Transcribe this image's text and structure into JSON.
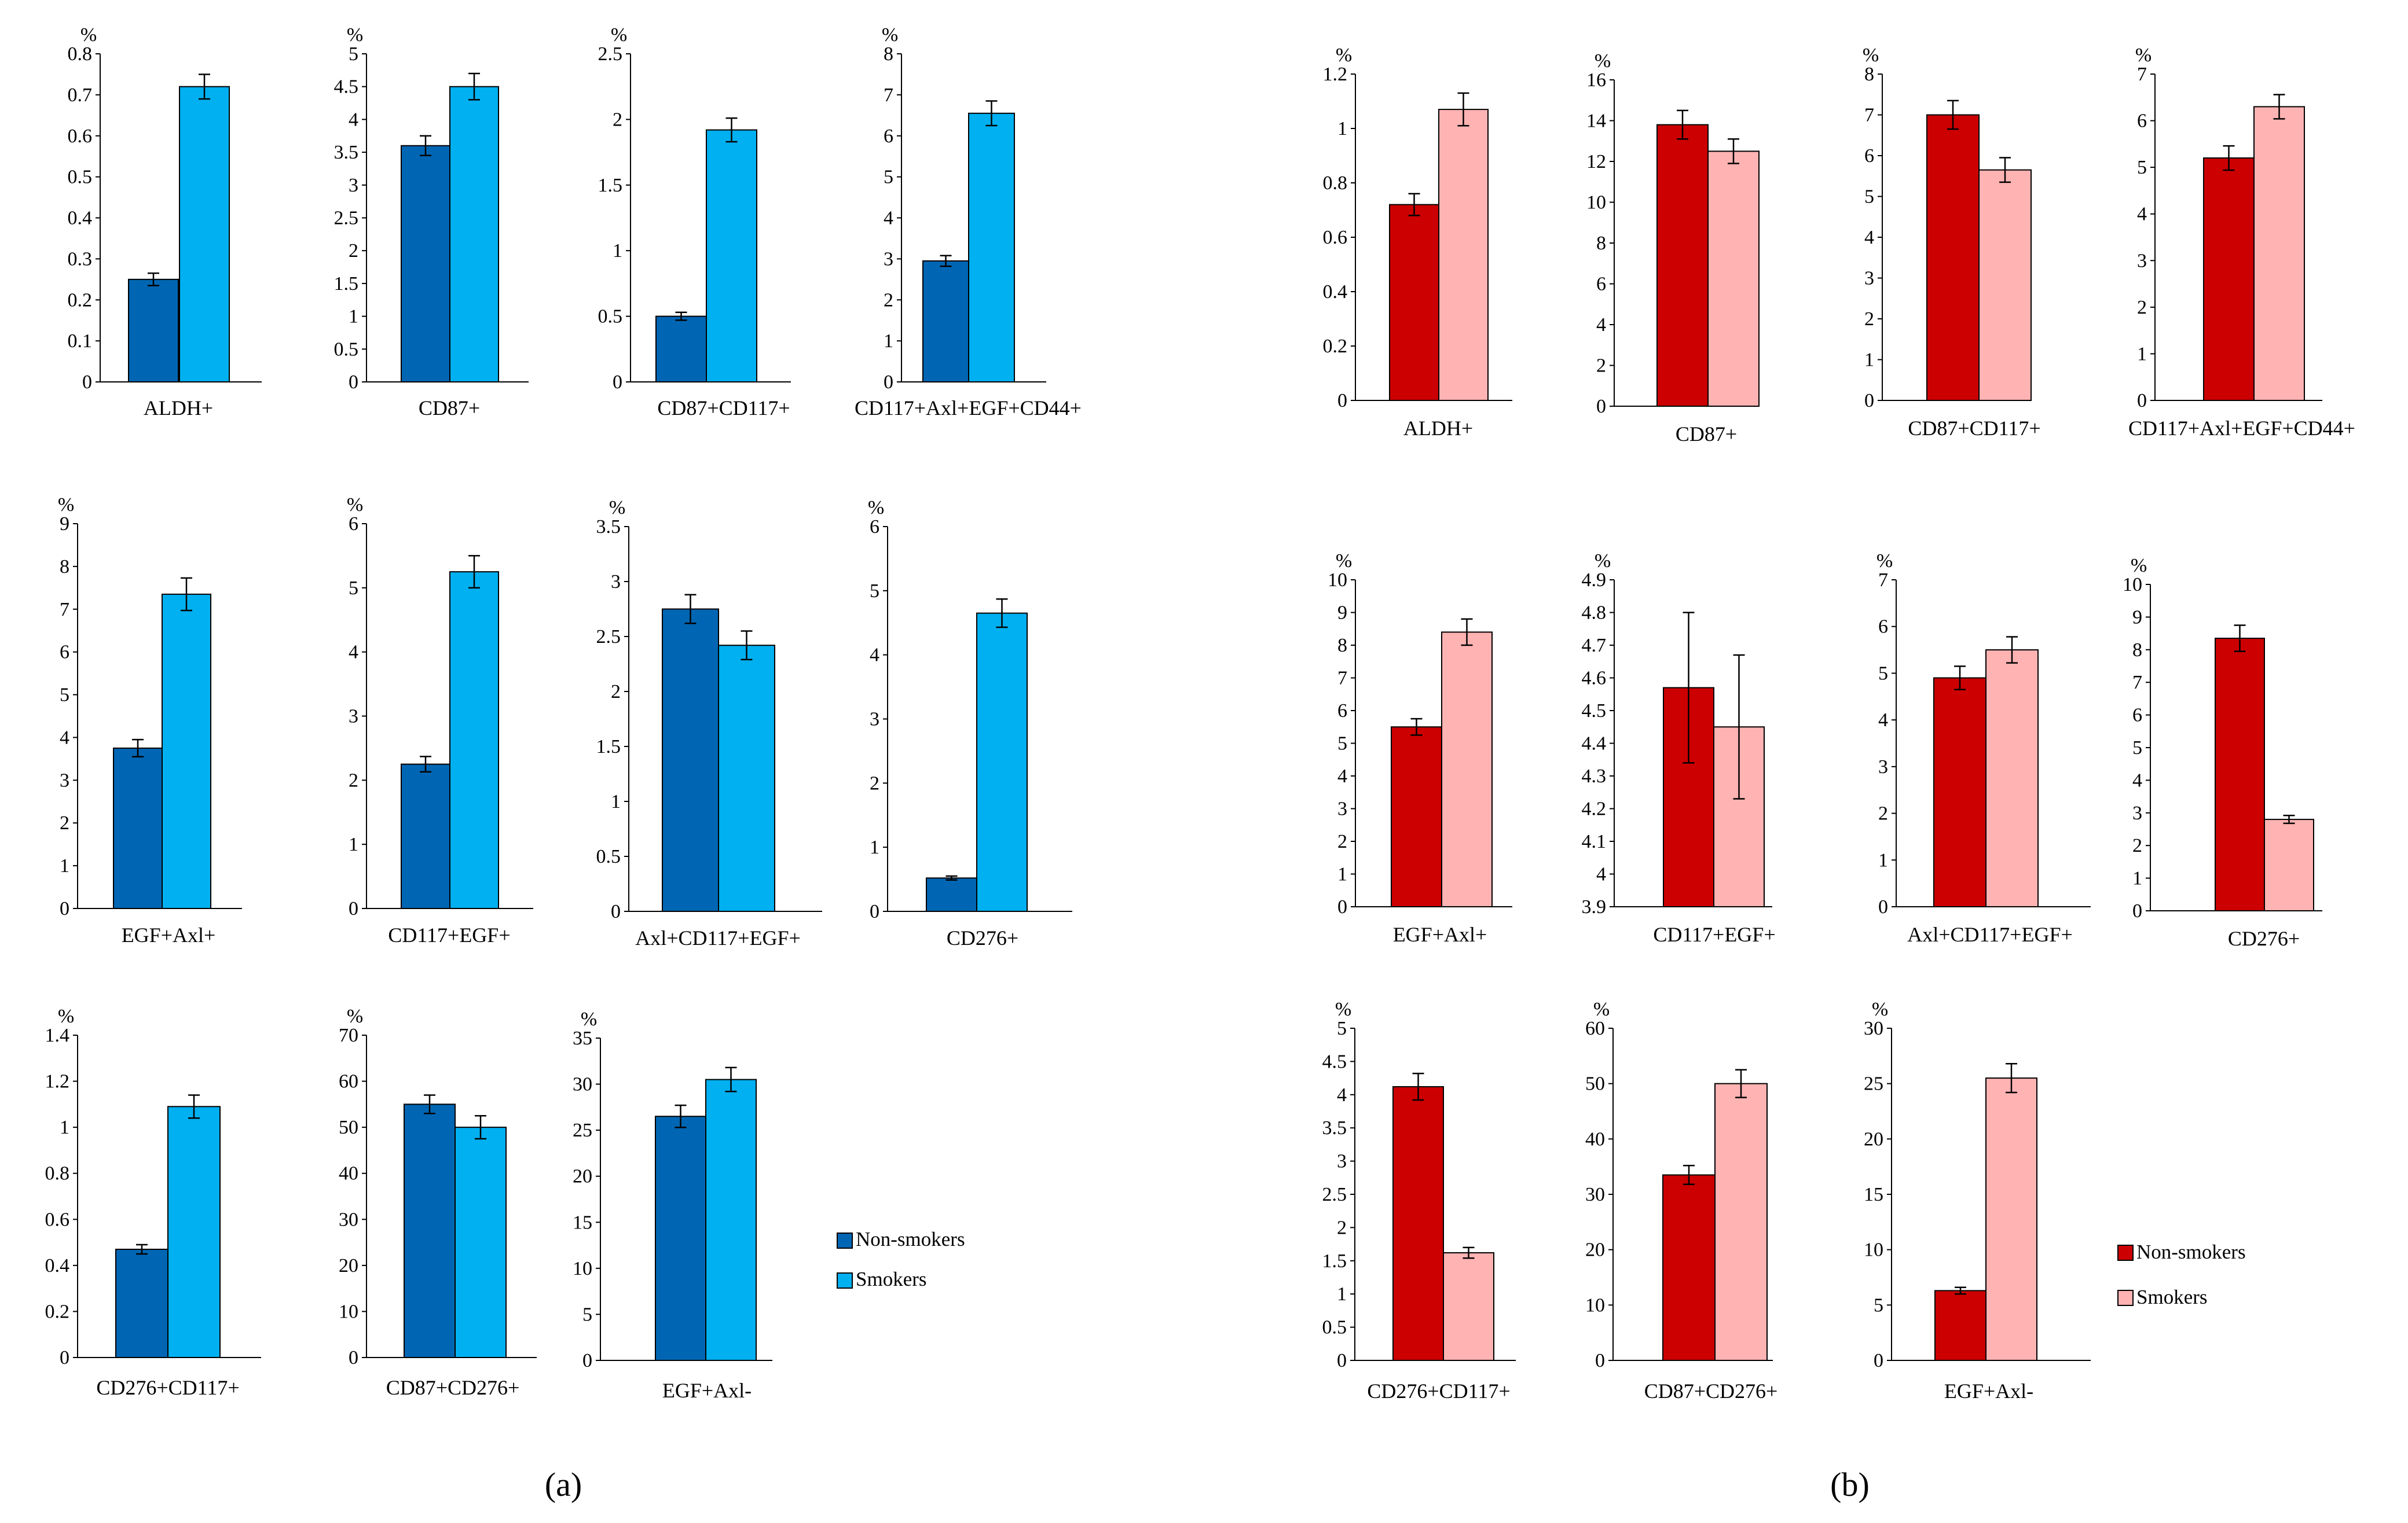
{
  "charts": [
    {
      "panel": "a",
      "unit": "%",
      "category": "ALDH+",
      "yticks": [
        "0",
        "0.1",
        "0.2",
        "0.3",
        "0.4",
        "0.5",
        "0.6",
        "0.7",
        "0.8"
      ],
      "ylim": [
        0,
        0.8
      ],
      "values": [
        0.25,
        0.72
      ],
      "errors": [
        0.015,
        0.03
      ]
    },
    {
      "panel": "a",
      "unit": "%",
      "category": "CD87+",
      "yticks": [
        "0",
        "0.5",
        "1",
        "1.5",
        "2",
        "2.5",
        "3",
        "3.5",
        "4",
        "4.5",
        "5"
      ],
      "ylim": [
        0,
        5
      ],
      "values": [
        3.6,
        4.5
      ],
      "errors": [
        0.15,
        0.2
      ]
    },
    {
      "panel": "a",
      "unit": "%",
      "category": "CD87+CD117+",
      "yticks": [
        "0",
        "0.5",
        "1",
        "1.5",
        "2",
        "2.5"
      ],
      "ylim": [
        0,
        2.5
      ],
      "values": [
        0.5,
        1.92
      ],
      "errors": [
        0.03,
        0.09
      ]
    },
    {
      "panel": "a",
      "unit": "%",
      "category": "CD117+Axl+EGF+CD44+",
      "yticks": [
        "0",
        "1",
        "2",
        "3",
        "4",
        "5",
        "6",
        "7",
        "8"
      ],
      "ylim": [
        0,
        8
      ],
      "values": [
        2.95,
        6.55
      ],
      "errors": [
        0.13,
        0.3
      ]
    },
    {
      "panel": "a",
      "unit": "%",
      "category": "EGF+Axl+",
      "yticks": [
        "0",
        "1",
        "2",
        "3",
        "4",
        "5",
        "6",
        "7",
        "8",
        "9"
      ],
      "ylim": [
        0,
        9
      ],
      "values": [
        3.75,
        7.35
      ],
      "errors": [
        0.2,
        0.38
      ]
    },
    {
      "panel": "a",
      "unit": "%",
      "category": "CD117+EGF+",
      "yticks": [
        "0",
        "1",
        "2",
        "3",
        "4",
        "5",
        "6"
      ],
      "ylim": [
        0,
        6
      ],
      "values": [
        2.25,
        5.25
      ],
      "errors": [
        0.12,
        0.25
      ]
    },
    {
      "panel": "a",
      "unit": "%",
      "category": "Axl+CD117+EGF+",
      "yticks": [
        "0",
        "0.5",
        "1",
        "1.5",
        "2",
        "2.5",
        "3",
        "3.5"
      ],
      "ylim": [
        0,
        3.5
      ],
      "values": [
        2.75,
        2.42
      ],
      "errors": [
        0.13,
        0.13
      ]
    },
    {
      "panel": "a",
      "unit": "%",
      "category": "CD276+",
      "yticks": [
        "0",
        "1",
        "2",
        "3",
        "4",
        "5",
        "6"
      ],
      "ylim": [
        0,
        6
      ],
      "values": [
        0.52,
        4.65
      ],
      "errors": [
        0.03,
        0.22
      ]
    },
    {
      "panel": "a",
      "unit": "%",
      "category": "CD276+CD117+",
      "yticks": [
        "0",
        "0.2",
        "0.4",
        "0.6",
        "0.8",
        "1",
        "1.2",
        "1.4"
      ],
      "ylim": [
        0,
        1.4
      ],
      "values": [
        0.47,
        1.09
      ],
      "errors": [
        0.02,
        0.05
      ]
    },
    {
      "panel": "a",
      "unit": "%",
      "category": "CD87+CD276+",
      "yticks": [
        "0",
        "10",
        "20",
        "30",
        "40",
        "50",
        "60",
        "70"
      ],
      "ylim": [
        0,
        70
      ],
      "values": [
        55,
        50
      ],
      "errors": [
        2,
        2.5
      ]
    },
    {
      "panel": "a",
      "unit": "%",
      "category": "EGF+Axl-",
      "yticks": [
        "0",
        "5",
        "10",
        "15",
        "20",
        "25",
        "30",
        "35"
      ],
      "ylim": [
        0,
        35
      ],
      "values": [
        26.5,
        30.5
      ],
      "errors": [
        1.2,
        1.3
      ]
    },
    {
      "panel": "b",
      "unit": "%",
      "category": "ALDH+",
      "yticks": [
        "0",
        "0.2",
        "0.4",
        "0.6",
        "0.8",
        "1",
        "1.2"
      ],
      "ylim": [
        0,
        1.2
      ],
      "values": [
        0.72,
        1.07
      ],
      "errors": [
        0.04,
        0.06
      ]
    },
    {
      "panel": "b",
      "unit": "%",
      "category": "CD87+",
      "yticks": [
        "0",
        "2",
        "4",
        "6",
        "8",
        "10",
        "12",
        "14",
        "16"
      ],
      "ylim": [
        0,
        16
      ],
      "values": [
        13.8,
        12.5
      ],
      "errors": [
        0.7,
        0.6
      ]
    },
    {
      "panel": "b",
      "unit": "%",
      "category": "CD87+CD117+",
      "yticks": [
        "0",
        "1",
        "2",
        "3",
        "4",
        "5",
        "6",
        "7",
        "8"
      ],
      "ylim": [
        0,
        8
      ],
      "values": [
        7,
        5.65
      ],
      "errors": [
        0.35,
        0.3
      ]
    },
    {
      "panel": "b",
      "unit": "%",
      "category": "CD117+Axl+EGF+CD44+",
      "yticks": [
        "0",
        "1",
        "2",
        "3",
        "4",
        "5",
        "6",
        "7"
      ],
      "ylim": [
        0,
        7
      ],
      "values": [
        5.2,
        6.3
      ],
      "errors": [
        0.26,
        0.26
      ]
    },
    {
      "panel": "b",
      "unit": "%",
      "category": "EGF+Axl+",
      "yticks": [
        "0",
        "1",
        "2",
        "3",
        "4",
        "5",
        "6",
        "7",
        "8",
        "9",
        "10"
      ],
      "ylim": [
        0,
        10
      ],
      "values": [
        5.5,
        8.4
      ],
      "errors": [
        0.25,
        0.4
      ]
    },
    {
      "panel": "b",
      "unit": "%",
      "category": "CD117+EGF+",
      "yticks": [
        "3.9",
        "4",
        "4.1",
        "4.2",
        "4.3",
        "4.4",
        "4.5",
        "4.6",
        "4.7",
        "4.8",
        "4.9"
      ],
      "ylim": [
        3.9,
        4.9
      ],
      "values": [
        4.57,
        4.45
      ],
      "errors": [
        0.23,
        0.22
      ]
    },
    {
      "panel": "b",
      "unit": "%",
      "category": "Axl+CD117+EGF+",
      "yticks": [
        "0",
        "1",
        "2",
        "3",
        "4",
        "5",
        "6",
        "7"
      ],
      "ylim": [
        0,
        7
      ],
      "values": [
        4.9,
        5.5
      ],
      "errors": [
        0.25,
        0.28
      ]
    },
    {
      "panel": "b",
      "unit": "%",
      "category": "CD276+",
      "yticks": [
        "0",
        "1",
        "2",
        "3",
        "4",
        "5",
        "6",
        "7",
        "8",
        "9",
        "10"
      ],
      "ylim": [
        0,
        10
      ],
      "values": [
        8.35,
        2.8
      ],
      "errors": [
        0.4,
        0.12
      ]
    },
    {
      "panel": "b",
      "unit": "%",
      "category": "CD276+CD117+",
      "yticks": [
        "0",
        "0.5",
        "1",
        "1.5",
        "2",
        "2.5",
        "3",
        "3.5",
        "4",
        "4.5",
        "5"
      ],
      "ylim": [
        0,
        5
      ],
      "values": [
        4.12,
        1.62
      ],
      "errors": [
        0.2,
        0.08
      ]
    },
    {
      "panel": "b",
      "unit": "%",
      "category": "CD87+CD276+",
      "yticks": [
        "0",
        "10",
        "20",
        "30",
        "40",
        "50",
        "60"
      ],
      "ylim": [
        0,
        60
      ],
      "values": [
        33.5,
        50
      ],
      "errors": [
        1.7,
        2.5
      ]
    },
    {
      "panel": "b",
      "unit": "%",
      "category": "EGF+Axl-",
      "yticks": [
        "0",
        "5",
        "10",
        "15",
        "20",
        "25",
        "30"
      ],
      "ylim": [
        0,
        30
      ],
      "values": [
        6.3,
        25.5
      ],
      "errors": [
        0.3,
        1.3
      ]
    }
  ],
  "chart_data": [
    {
      "type": "bar",
      "panel": "a",
      "series": [
        {
          "name": "Non-smokers",
          "color": "#0066b3"
        },
        {
          "name": "Smokers",
          "color": "#00b0f0"
        }
      ]
    },
    {
      "type": "bar",
      "panel": "b",
      "series": [
        {
          "name": "Non-smokers",
          "color": "#cc0000"
        },
        {
          "name": "Smokers",
          "color": "#ffb3b3"
        }
      ]
    }
  ],
  "legends": [
    {
      "panel": "a",
      "items": [
        {
          "label": "Non-smokers",
          "color": "#0066b3"
        },
        {
          "label": "Smokers",
          "color": "#00b0f0"
        }
      ]
    },
    {
      "panel": "b",
      "items": [
        {
          "label": "Non-smokers",
          "color": "#cc0000"
        },
        {
          "label": "Smokers",
          "color": "#ffb3b3"
        }
      ]
    }
  ],
  "panel_labels": {
    "a": "(a)",
    "b": "(b)"
  }
}
